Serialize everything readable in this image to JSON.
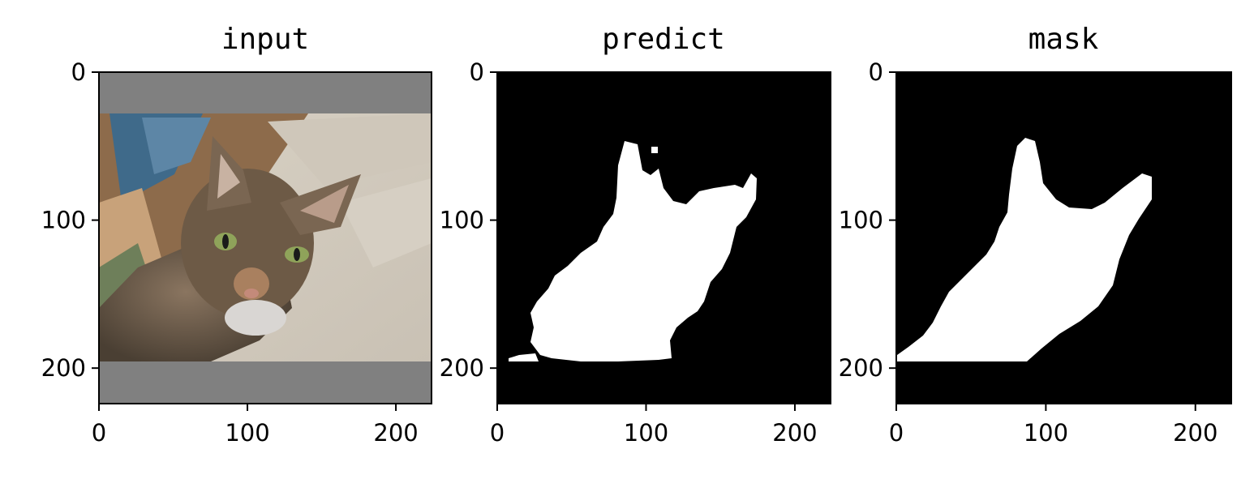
{
  "chart_data": [
    {
      "type": "image",
      "title": "input",
      "content": "photo of a tabby cat lying on its side on a bed, letterboxed with grey bars top and bottom",
      "xlim": [
        0,
        224
      ],
      "ylim": [
        224,
        0
      ],
      "xticks": [
        0,
        100,
        200
      ],
      "yticks": [
        0,
        100,
        200
      ]
    },
    {
      "type": "image",
      "title": "predict",
      "content": "binary segmentation mask, white cat region on black background",
      "xlim": [
        0,
        224
      ],
      "ylim": [
        224,
        0
      ],
      "xticks": [
        0,
        100,
        200
      ],
      "yticks": [
        0,
        100,
        200
      ],
      "colors": {
        "foreground": "#ffffff",
        "background": "#000000"
      }
    },
    {
      "type": "image",
      "title": "mask",
      "content": "ground-truth binary mask, white cat region on black background",
      "xlim": [
        0,
        224
      ],
      "ylim": [
        224,
        0
      ],
      "xticks": [
        0,
        100,
        200
      ],
      "yticks": [
        0,
        100,
        200
      ],
      "colors": {
        "foreground": "#ffffff",
        "background": "#000000"
      }
    }
  ]
}
